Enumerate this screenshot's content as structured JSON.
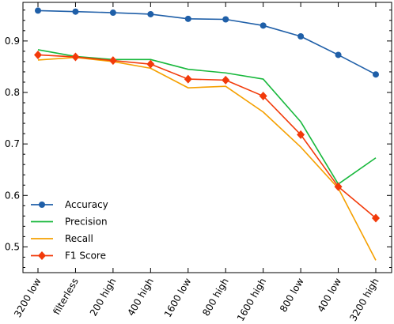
{
  "chart_data": {
    "type": "line",
    "title": "",
    "xlabel": "",
    "ylabel": "",
    "categories": [
      "3200 low",
      "filterless",
      "200 high",
      "400 high",
      "1600 low",
      "800 high",
      "1600 high",
      "800 low",
      "400 low",
      "3200 high"
    ],
    "ylim": [
      0.45,
      0.975
    ],
    "yticks": [
      0.5,
      0.6,
      0.7,
      0.8,
      0.9
    ],
    "grid": false,
    "legend": "bottom-left",
    "series": [
      {
        "name": "Accuracy",
        "color": "#1f5fa8",
        "marker": "circle",
        "values": [
          0.959,
          0.957,
          0.955,
          0.952,
          0.943,
          0.942,
          0.93,
          0.909,
          0.873,
          0.835
        ]
      },
      {
        "name": "Precision",
        "color": "#18b83c",
        "marker": "none",
        "values": [
          0.883,
          0.87,
          0.864,
          0.864,
          0.845,
          0.838,
          0.826,
          0.743,
          0.622,
          0.673
        ]
      },
      {
        "name": "Recall",
        "color": "#f5a000",
        "marker": "none",
        "values": [
          0.863,
          0.868,
          0.86,
          0.847,
          0.809,
          0.812,
          0.762,
          0.694,
          0.614,
          0.474
        ]
      },
      {
        "name": "F1 Score",
        "color": "#f23a0a",
        "marker": "diamond",
        "values": [
          0.873,
          0.869,
          0.862,
          0.855,
          0.826,
          0.824,
          0.793,
          0.718,
          0.617,
          0.556
        ]
      }
    ]
  }
}
